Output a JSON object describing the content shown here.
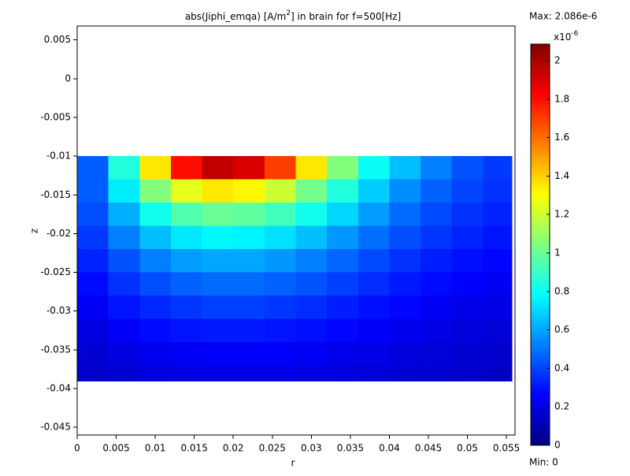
{
  "chart_data": {
    "type": "heatmap",
    "title_parts": [
      "abs(Jiphi_emqa) [A/m",
      "2",
      "] in brain for f=500[Hz]"
    ],
    "xlabel": "r",
    "ylabel": "z",
    "xlim": [
      0,
      0.0561
    ],
    "ylim": [
      -0.046,
      0.0068
    ],
    "xticks": [
      0,
      0.005,
      0.01,
      0.015,
      0.02,
      0.025,
      0.03,
      0.035,
      0.04,
      0.045,
      0.05,
      0.055
    ],
    "yticks": [
      0.005,
      0,
      -0.005,
      -0.01,
      -0.015,
      -0.02,
      -0.025,
      -0.03,
      -0.035,
      -0.04,
      -0.045
    ],
    "x_edges": [
      0,
      0.004,
      0.008,
      0.012,
      0.016,
      0.02,
      0.024,
      0.028,
      0.032,
      0.036,
      0.04,
      0.044,
      0.048,
      0.052,
      0.0557
    ],
    "y_edges": [
      -0.01,
      -0.013,
      -0.016,
      -0.019,
      -0.022,
      -0.025,
      -0.028,
      -0.031,
      -0.034,
      -0.037,
      -0.039
    ],
    "values": [
      [
        0.45,
        0.85,
        1.35,
        1.8,
        1.95,
        1.9,
        1.7,
        1.35,
        1.05,
        0.8,
        0.65,
        0.52,
        0.43,
        0.38
      ],
      [
        0.45,
        0.75,
        1.05,
        1.25,
        1.35,
        1.32,
        1.2,
        1.02,
        0.85,
        0.68,
        0.55,
        0.46,
        0.4,
        0.36
      ],
      [
        0.42,
        0.62,
        0.82,
        0.95,
        1.0,
        0.98,
        0.92,
        0.82,
        0.7,
        0.58,
        0.48,
        0.41,
        0.36,
        0.33
      ],
      [
        0.38,
        0.52,
        0.65,
        0.74,
        0.77,
        0.76,
        0.72,
        0.65,
        0.57,
        0.49,
        0.42,
        0.37,
        0.33,
        0.3
      ],
      [
        0.33,
        0.43,
        0.52,
        0.58,
        0.6,
        0.6,
        0.57,
        0.52,
        0.47,
        0.41,
        0.36,
        0.32,
        0.29,
        0.27
      ],
      [
        0.28,
        0.36,
        0.42,
        0.46,
        0.48,
        0.48,
        0.46,
        0.43,
        0.39,
        0.35,
        0.31,
        0.28,
        0.26,
        0.24
      ],
      [
        0.24,
        0.3,
        0.34,
        0.37,
        0.39,
        0.39,
        0.37,
        0.35,
        0.32,
        0.29,
        0.27,
        0.24,
        0.22,
        0.21
      ],
      [
        0.2,
        0.25,
        0.28,
        0.3,
        0.31,
        0.31,
        0.3,
        0.29,
        0.27,
        0.25,
        0.23,
        0.21,
        0.19,
        0.18
      ],
      [
        0.17,
        0.2,
        0.23,
        0.24,
        0.25,
        0.25,
        0.25,
        0.24,
        0.22,
        0.21,
        0.19,
        0.18,
        0.17,
        0.16
      ],
      [
        0.15,
        0.17,
        0.19,
        0.2,
        0.21,
        0.21,
        0.21,
        0.2,
        0.19,
        0.18,
        0.17,
        0.16,
        0.15,
        0.14
      ]
    ],
    "colormap": "jet",
    "clim": [
      0,
      2.086
    ],
    "cbar_ticks": [
      0,
      0.2,
      0.4,
      0.6,
      0.8,
      1,
      1.2,
      1.4,
      1.6,
      1.8,
      2
    ],
    "cbar_exponent": [
      "x10",
      "-6"
    ],
    "cbar_max_label": "Max: 2.086e-6",
    "cbar_min_label": "Min: 0"
  }
}
